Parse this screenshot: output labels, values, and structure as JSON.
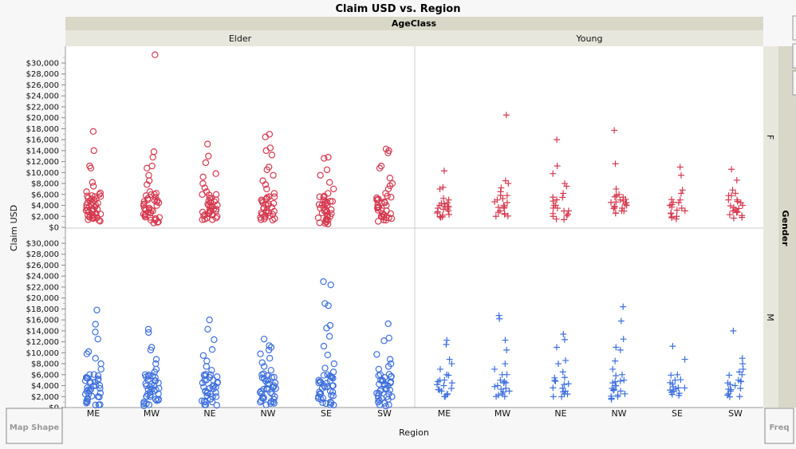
{
  "chart_data": {
    "type": "scatter",
    "title": "Claim USD vs. Region",
    "xlabel": "Region",
    "ylabel": "Claim USD",
    "group_x": {
      "label": "AgeClass",
      "levels": [
        "Elder",
        "Young"
      ]
    },
    "group_y": {
      "label": "Gender",
      "levels": [
        "F",
        "M"
      ]
    },
    "categories": [
      "ME",
      "MW",
      "NE",
      "NW",
      "SE",
      "SW"
    ],
    "ylim": [
      0,
      33000
    ],
    "y_ticks": [
      0,
      2000,
      4000,
      6000,
      8000,
      10000,
      12000,
      14000,
      16000,
      18000,
      20000,
      22000,
      24000,
      26000,
      28000,
      30000
    ],
    "y_tick_labels": [
      "$0",
      "$2,000",
      "$4,000",
      "$6,000",
      "$8,000",
      "$10,000",
      "$12,000",
      "$14,000",
      "$16,000",
      "$18,000",
      "$20,000",
      "$22,000",
      "$24,000",
      "$26,000",
      "$28,000",
      "$30,000"
    ],
    "colors": {
      "F": "#d5394f",
      "M": "#3d6fdd"
    },
    "markers": {
      "Elder": "circle",
      "Young": "plus"
    },
    "grid": false,
    "series": {
      "F": {
        "Elder": {
          "ME": [
            17500,
            14000,
            11200,
            10800,
            8200,
            7500,
            6500,
            6000,
            5600,
            5200,
            4800,
            4400,
            4000,
            3600,
            3200,
            2800,
            2500,
            2200,
            1900,
            1600,
            1400
          ],
          "MW": [
            31500,
            13800,
            12800,
            11200,
            10800,
            9500,
            8500,
            7800,
            6500,
            6000,
            5500,
            5000,
            4500,
            4000,
            3500,
            3000,
            2600,
            2200,
            1800,
            1300,
            900
          ],
          "NE": [
            15200,
            13000,
            11800,
            9800,
            9200,
            8000,
            7200,
            6500,
            6000,
            5300,
            4800,
            4200,
            3800,
            3300,
            2900,
            2500,
            2100,
            1700,
            1400
          ],
          "NW": [
            17000,
            16500,
            14500,
            14000,
            13200,
            11000,
            10500,
            9500,
            8500,
            7800,
            7000,
            6200,
            5600,
            5000,
            4500,
            4000,
            3500,
            3000,
            2600,
            2200,
            1800,
            1400
          ],
          "SE": [
            12800,
            12600,
            10500,
            9500,
            8200,
            7000,
            6200,
            5500,
            5000,
            4500,
            4000,
            3500,
            3000,
            2500,
            2000,
            1500,
            1000,
            600
          ],
          "SW": [
            14300,
            14000,
            13600,
            11200,
            10800,
            9000,
            8000,
            7600,
            7000,
            6200,
            5500,
            5000,
            4500,
            4000,
            3500,
            3000,
            2500,
            2000,
            1600,
            1300
          ]
        },
        "Young": {
          "ME": [
            10300,
            7300,
            7000,
            5000,
            4500,
            4000,
            3700,
            3500,
            3300,
            3000,
            2600,
            2200,
            1800
          ],
          "MW": [
            20500,
            8500,
            8000,
            7200,
            6500,
            5800,
            5000,
            4500,
            4000,
            3500,
            3000,
            2500,
            2000
          ],
          "NE": [
            16000,
            11200,
            9800,
            8000,
            7500,
            6200,
            5500,
            4800,
            4000,
            3500,
            3000,
            2500,
            2000,
            1500
          ],
          "NW": [
            17700,
            11600,
            7000,
            6000,
            5500,
            5000,
            4800,
            4500,
            4200,
            3800,
            3400,
            3000,
            2600
          ],
          "SE": [
            11000,
            9500,
            6800,
            6200,
            5000,
            4500,
            4000,
            3500,
            3000,
            2500,
            2000,
            1500
          ],
          "SW": [
            10600,
            8600,
            6800,
            6200,
            5800,
            5000,
            4500,
            4000,
            3600,
            3200,
            2800,
            2300,
            1800
          ]
        }
      },
      "M": {
        "Elder": {
          "ME": [
            17800,
            15200,
            13800,
            12500,
            10200,
            9800,
            9000,
            8000,
            7000,
            6000,
            5500,
            5000,
            4500,
            4000,
            3500,
            3000,
            2500,
            2000,
            1500,
            1000,
            500
          ],
          "MW": [
            14300,
            13700,
            11000,
            10500,
            8800,
            8000,
            7000,
            6500,
            6000,
            5500,
            5000,
            4500,
            4000,
            3500,
            3000,
            2500,
            2000,
            1500,
            1000,
            500
          ],
          "NE": [
            16000,
            14300,
            12400,
            10600,
            9500,
            8500,
            7500,
            6800,
            6000,
            5500,
            5000,
            4500,
            4000,
            3500,
            3000,
            2500,
            2000,
            1500,
            1000,
            500
          ],
          "NW": [
            12500,
            11300,
            11000,
            10500,
            9800,
            9000,
            8200,
            7500,
            6800,
            6000,
            5500,
            5000,
            4500,
            4000,
            3500,
            3000,
            2500,
            2000,
            1500,
            1000,
            500
          ],
          "SE": [
            23000,
            22400,
            19000,
            18600,
            15000,
            14500,
            13000,
            11200,
            9600,
            8000,
            7200,
            6500,
            6000,
            5500,
            5000,
            4500,
            4000,
            3500,
            3000,
            2500,
            2000,
            1500,
            1000,
            500
          ],
          "SW": [
            15300,
            12700,
            12200,
            9700,
            8800,
            8000,
            7500,
            7000,
            6000,
            5500,
            5000,
            4500,
            4000,
            3500,
            3000,
            2500,
            2000,
            1500,
            1000,
            500
          ]
        },
        "Young": {
          "ME": [
            12300,
            11500,
            8800,
            8000,
            7000,
            6000,
            5000,
            4500,
            4000,
            3500,
            3000,
            2500,
            2000
          ],
          "MW": [
            16800,
            16200,
            12300,
            10500,
            8000,
            7000,
            6000,
            5000,
            4500,
            4000,
            3500,
            3000,
            2500,
            2000
          ],
          "NE": [
            13400,
            12400,
            11000,
            8600,
            8000,
            6500,
            5500,
            4800,
            4200,
            3600,
            3000,
            2500,
            2000
          ],
          "NW": [
            18400,
            15800,
            12500,
            11000,
            10500,
            8500,
            7000,
            6000,
            5000,
            4500,
            4000,
            3500,
            3000,
            2500,
            2000,
            1500
          ],
          "SE": [
            11200,
            8800,
            6000,
            5000,
            4300,
            3800,
            3400,
            3000,
            2600,
            2200
          ],
          "SW": [
            14000,
            9000,
            8000,
            7000,
            6500,
            6000,
            5000,
            4500,
            4000,
            3500,
            3000,
            2500,
            2000
          ]
        }
      }
    }
  },
  "drop_zones": {
    "map_shape": "Map Shape",
    "freq": "Freq"
  }
}
